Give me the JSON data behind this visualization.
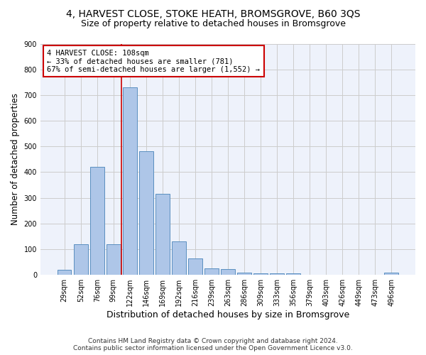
{
  "title": "4, HARVEST CLOSE, STOKE HEATH, BROMSGROVE, B60 3QS",
  "subtitle": "Size of property relative to detached houses in Bromsgrove",
  "xlabel": "Distribution of detached houses by size in Bromsgrove",
  "ylabel": "Number of detached properties",
  "categories": [
    "29sqm",
    "52sqm",
    "76sqm",
    "99sqm",
    "122sqm",
    "146sqm",
    "169sqm",
    "192sqm",
    "216sqm",
    "239sqm",
    "263sqm",
    "286sqm",
    "309sqm",
    "333sqm",
    "356sqm",
    "379sqm",
    "403sqm",
    "426sqm",
    "449sqm",
    "473sqm",
    "496sqm"
  ],
  "values": [
    20,
    120,
    420,
    120,
    730,
    480,
    315,
    130,
    65,
    25,
    22,
    10,
    7,
    5,
    5,
    1,
    0,
    0,
    0,
    0,
    10
  ],
  "bar_color": "#aec6e8",
  "bar_edge_color": "#5a8fc0",
  "annotation_line1": "4 HARVEST CLOSE: 108sqm",
  "annotation_line2": "← 33% of detached houses are smaller (781)",
  "annotation_line3": "67% of semi-detached houses are larger (1,552) →",
  "vline_color": "#cc0000",
  "box_edge_color": "#cc0000",
  "footer1": "Contains HM Land Registry data © Crown copyright and database right 2024.",
  "footer2": "Contains public sector information licensed under the Open Government Licence v3.0.",
  "ylim": [
    0,
    900
  ],
  "yticks": [
    0,
    100,
    200,
    300,
    400,
    500,
    600,
    700,
    800,
    900
  ],
  "background_color": "#eef2fb",
  "grid_color": "#cccccc",
  "title_fontsize": 10,
  "subtitle_fontsize": 9,
  "xlabel_fontsize": 9,
  "ylabel_fontsize": 8.5,
  "tick_fontsize": 7,
  "annotation_fontsize": 7.5,
  "footer_fontsize": 6.5,
  "vline_x": 3.5
}
